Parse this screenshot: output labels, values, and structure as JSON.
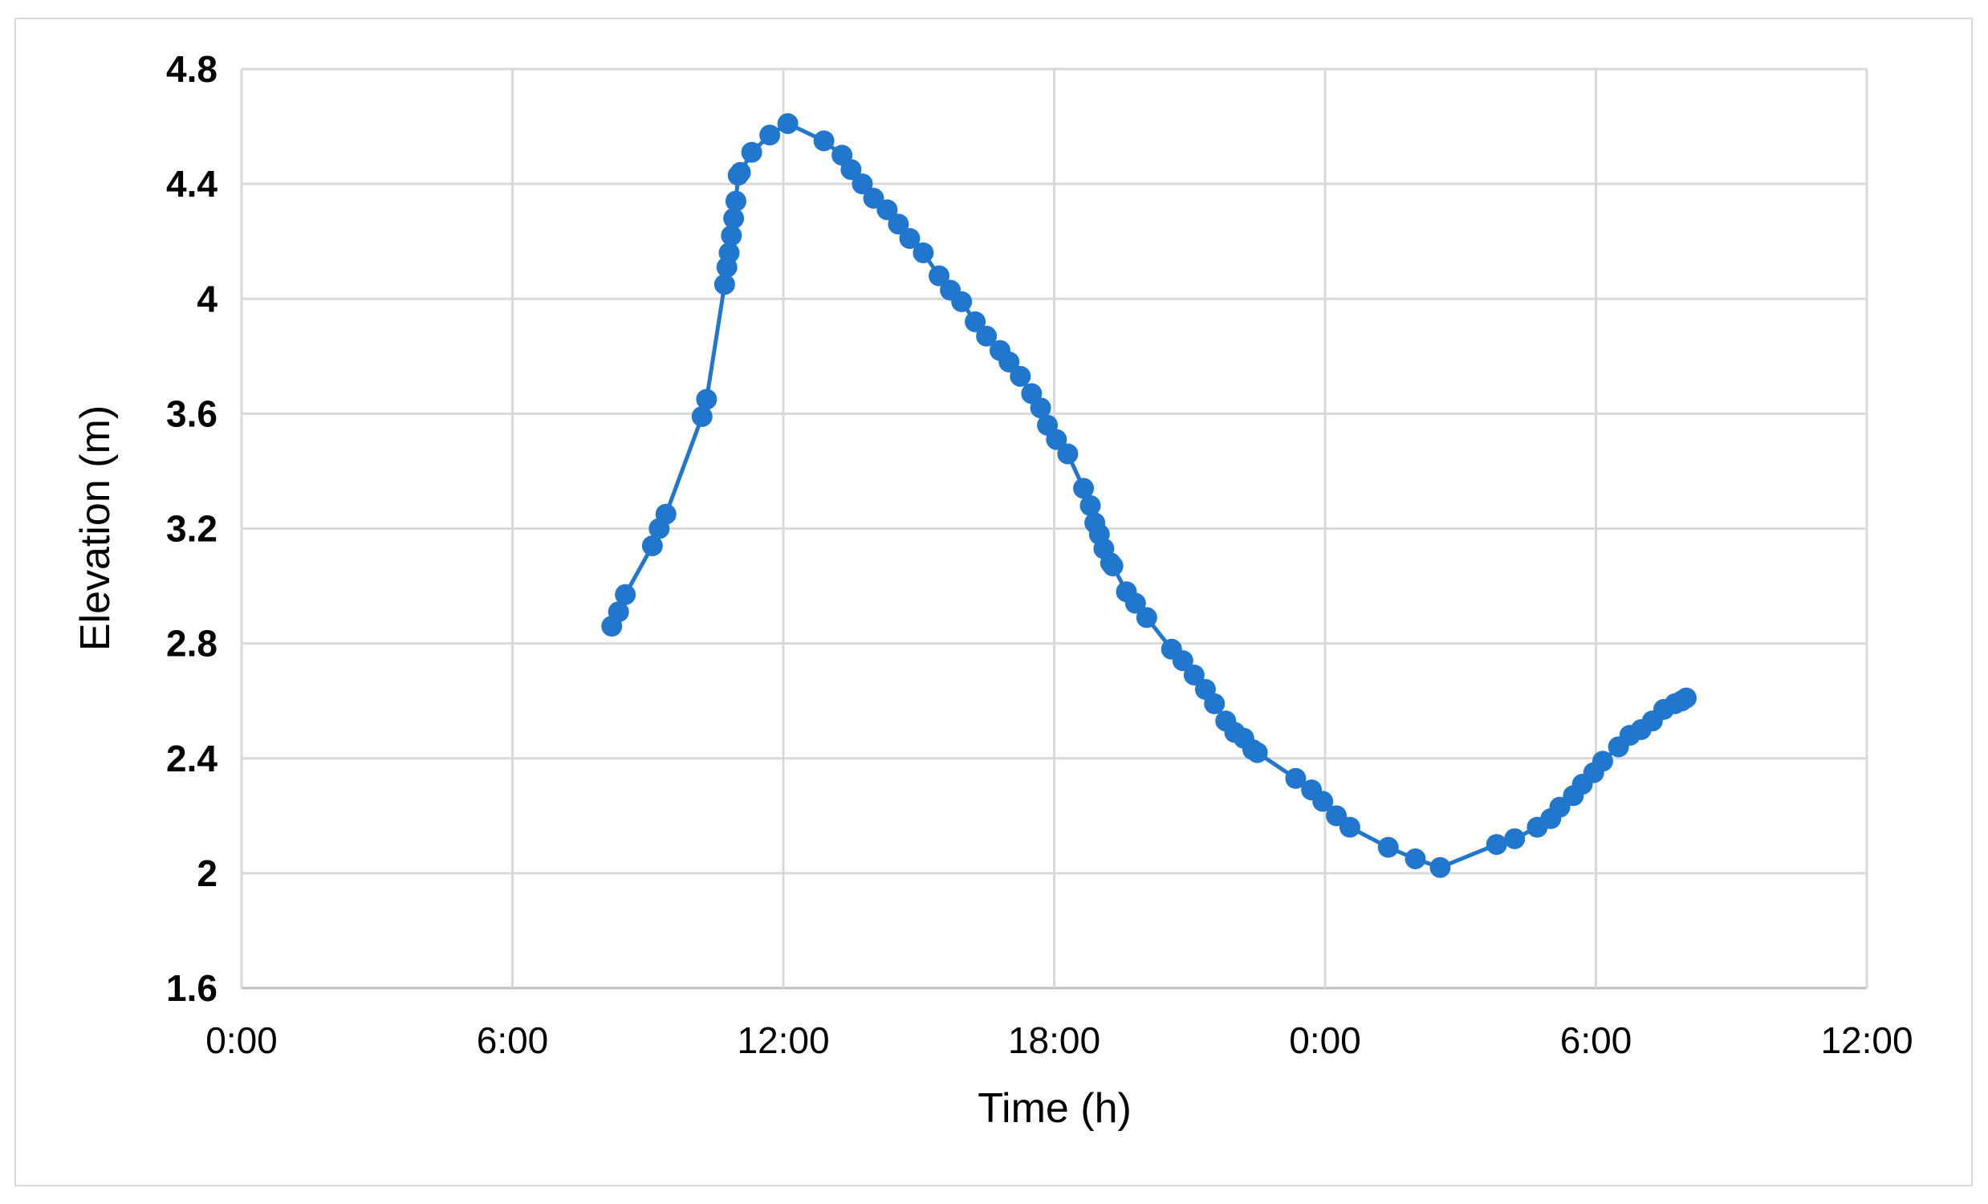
{
  "chart_data": {
    "type": "line",
    "title": "",
    "xlabel": "Time (h)",
    "ylabel": "Elevation (m)",
    "x_unit": "hours",
    "x_ticks": [
      "0:00",
      "6:00",
      "12:00",
      "18:00",
      "0:00",
      "6:00",
      "12:00"
    ],
    "x_tick_values": [
      0,
      6,
      12,
      18,
      24,
      30,
      36
    ],
    "xlim": [
      0,
      36
    ],
    "y_ticks": [
      "1.6",
      "2",
      "2.4",
      "2.8",
      "3.2",
      "3.6",
      "4",
      "4.4",
      "4.8"
    ],
    "ylim": [
      1.6,
      4.8
    ],
    "grid": true,
    "markers": true,
    "series_color": "#2176cd",
    "series": [
      {
        "x": [
          8.2,
          8.35,
          8.5,
          9.1,
          9.25,
          9.4,
          10.2,
          10.3,
          10.7,
          10.75,
          10.8,
          10.85,
          10.9,
          10.95,
          11.0,
          11.05,
          11.3,
          11.7,
          12.1,
          12.9,
          13.3,
          13.5,
          13.75,
          14.0,
          14.3,
          14.55,
          14.8,
          15.1,
          15.45,
          15.7,
          15.95,
          16.25,
          16.5,
          16.8,
          17.0,
          17.25,
          17.5,
          17.7,
          17.85,
          18.05,
          18.3,
          18.65,
          18.8,
          18.9,
          19.0,
          19.1,
          19.25,
          19.3,
          19.6,
          19.8,
          20.05,
          20.6,
          20.85,
          21.1,
          21.35,
          21.55,
          21.8,
          22.0,
          22.2,
          22.4,
          22.5,
          23.35,
          23.7,
          23.95,
          24.25,
          24.55,
          25.4,
          26.0,
          26.55,
          27.8,
          28.2,
          28.7,
          29.0,
          29.2,
          29.5,
          29.7,
          29.95,
          30.15,
          30.5,
          30.75,
          31.0,
          31.25,
          31.5,
          31.75,
          31.9,
          32.0
        ],
        "y": [
          2.86,
          2.91,
          2.97,
          3.14,
          3.2,
          3.25,
          3.59,
          3.65,
          4.05,
          4.11,
          4.16,
          4.22,
          4.28,
          4.34,
          4.43,
          4.44,
          4.51,
          4.57,
          4.61,
          4.55,
          4.5,
          4.45,
          4.4,
          4.35,
          4.31,
          4.26,
          4.21,
          4.16,
          4.08,
          4.03,
          3.99,
          3.92,
          3.87,
          3.82,
          3.78,
          3.73,
          3.67,
          3.62,
          3.56,
          3.51,
          3.46,
          3.34,
          3.28,
          3.22,
          3.18,
          3.13,
          3.08,
          3.07,
          2.98,
          2.94,
          2.89,
          2.78,
          2.74,
          2.69,
          2.64,
          2.59,
          2.53,
          2.49,
          2.47,
          2.43,
          2.42,
          2.33,
          2.29,
          2.25,
          2.2,
          2.16,
          2.09,
          2.05,
          2.02,
          2.1,
          2.12,
          2.16,
          2.19,
          2.23,
          2.27,
          2.31,
          2.35,
          2.39,
          2.44,
          2.48,
          2.5,
          2.53,
          2.57,
          2.59,
          2.6,
          2.61
        ]
      }
    ]
  }
}
